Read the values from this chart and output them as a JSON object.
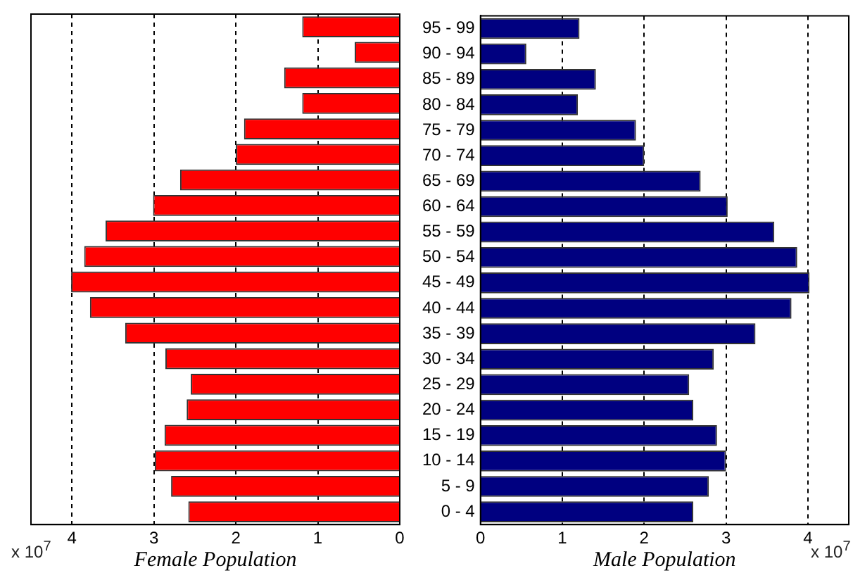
{
  "chart_data": [
    {
      "type": "bar",
      "orientation": "horizontal",
      "xlabel": "Female Population",
      "categories": [
        null,
        null,
        null,
        null,
        null,
        null,
        null,
        null,
        null,
        null,
        null,
        null,
        null,
        null,
        null,
        null,
        null,
        null,
        null,
        null
      ],
      "values": [
        1.19,
        0.55,
        1.41,
        1.19,
        1.9,
        2.0,
        2.68,
        3.01,
        3.59,
        3.85,
        4.01,
        3.78,
        3.35,
        2.86,
        2.55,
        2.6,
        2.87,
        2.99,
        2.79,
        2.58
      ],
      "color": "#ff0000",
      "xlim": [
        4.5,
        0
      ],
      "xticks": [
        4,
        3,
        2,
        1,
        0
      ],
      "grid": "x",
      "tick_labels": "x",
      "annotations": [
        "x 10$^{7}$"
      ]
    },
    {
      "type": "bar",
      "orientation": "horizontal",
      "xlabel": "Male Population",
      "categories": [
        "95 - 99",
        "90 - 94",
        "85 - 89",
        "80 - 84",
        "75 - 79",
        "70 - 74",
        "65 - 69",
        "60 - 64",
        "55 - 59",
        "50 - 54",
        "45 - 49",
        "40 - 44",
        "35 - 39",
        "30 - 34",
        "25 - 29",
        "20 - 24",
        "15 - 19",
        "10 - 14",
        "5 - 9",
        "0 - 4"
      ],
      "values": [
        1.21,
        0.56,
        1.41,
        1.19,
        1.9,
        2.0,
        2.69,
        3.02,
        3.59,
        3.87,
        4.02,
        3.8,
        3.36,
        2.85,
        2.55,
        2.6,
        2.89,
        3.0,
        2.79,
        2.6
      ],
      "color": "#000080",
      "xlim": [
        0,
        4.5
      ],
      "xticks": [
        0,
        1,
        2,
        3,
        4
      ],
      "grid": "x",
      "annotations": [
        "x 10$^{7}$"
      ]
    }
  ]
}
